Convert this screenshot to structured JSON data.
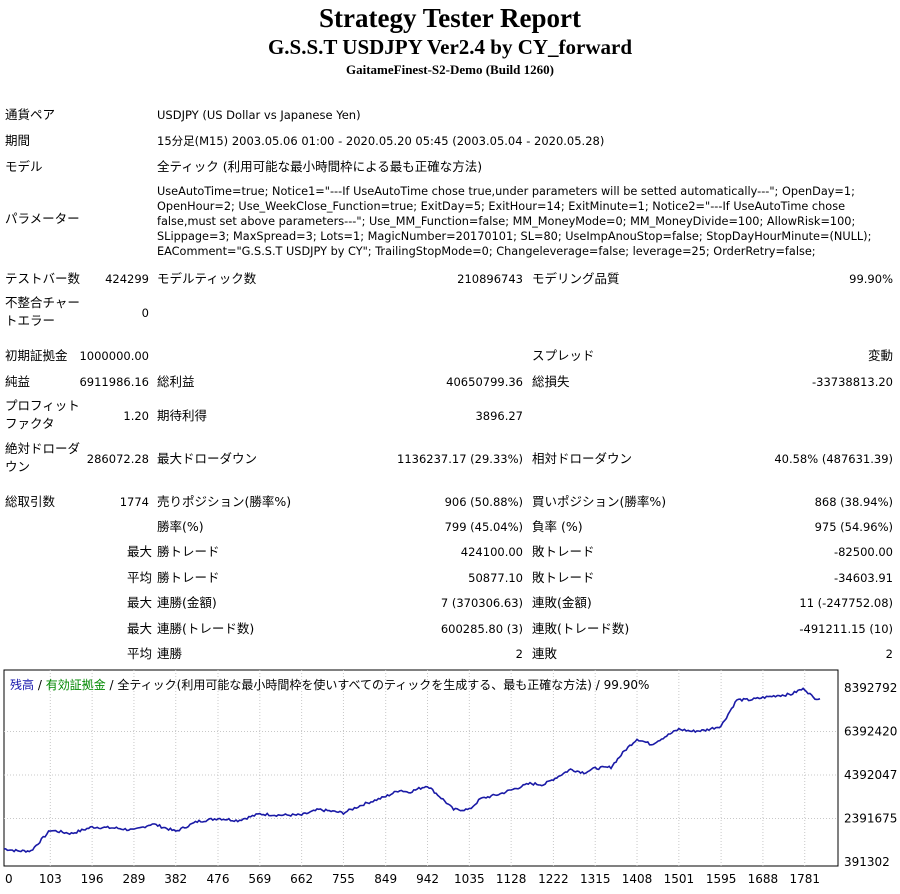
{
  "report": {
    "title": "Strategy Tester Report",
    "subtitle": "G.S.S.T USDJPY Ver2.4 by CY_forward",
    "server": "GaitameFinest-S2-Demo (Build 1260)"
  },
  "info": {
    "symbol_label": "通貨ペア",
    "symbol_value": "USDJPY (US Dollar vs Japanese Yen)",
    "period_label": "期間",
    "period_value": "15分足(M15) 2003.05.06 01:00 - 2020.05.20 05:45 (2003.05.04 - 2020.05.28)",
    "model_label": "モデル",
    "model_value": "全ティック (利用可能な最小時間枠による最も正確な方法)",
    "params_label": "パラメーター",
    "params_value": "UseAutoTime=true; Notice1=\"---If UseAutoTime chose true,under parameters will be setted automatically---\"; OpenDay=1; OpenHour=2; Use_WeekClose_Function=true; ExitDay=5; ExitHour=14; ExitMinute=1; Notice2=\"---If UseAutoTime chose false,must set above parameters---\"; Use_MM_Function=false; MM_MoneyMode=0; MM_MoneyDivide=100; AllowRisk=100; SLippage=3; MaxSpread=3; Lots=1; MagicNumber=20170101; SL=80; UseImpAnouStop=false; StopDayHourMinute=(NULL); EAComment=\"G.S.S.T USDJPY by CY\"; TrailingStopMode=0; Changeleverage=false; leverage=25; OrderRetry=false;"
  },
  "stats": {
    "bars_label": "テストバー数",
    "bars_value": "424299",
    "ticks_label": "モデルティック数",
    "ticks_value": "210896743",
    "quality_label": "モデリング品質",
    "quality_value": "99.90%",
    "mismatch_label_1": "不整合チャー",
    "mismatch_label_2": "トエラー",
    "mismatch_value": "0",
    "deposit_label": "初期証拠金",
    "deposit_value": "1000000.00",
    "spread_label": "スプレッド",
    "spread_value": "変動",
    "net_label": "純益",
    "net_value": "6911986.16",
    "gross_profit_label": "総利益",
    "gross_profit_value": "40650799.36",
    "gross_loss_label": "総損失",
    "gross_loss_value": "-33738813.20",
    "pf_label_1": "プロフィット",
    "pf_label_2": "ファクタ",
    "pf_value": "1.20",
    "expected_label": "期待利得",
    "expected_value": "3896.27",
    "abs_dd_label_1": "絶対ドローダ",
    "abs_dd_label_2": "ウン",
    "abs_dd_value": "286072.28",
    "max_dd_label": "最大ドローダウン",
    "max_dd_value": "1136237.17 (29.33%)",
    "rel_dd_label": "相対ドローダウン",
    "rel_dd_value": "40.58% (487631.39)",
    "trades_label": "総取引数",
    "trades_value": "1774",
    "short_label": "売りポジション(勝率%)",
    "short_value": "906 (50.88%)",
    "long_label": "買いポジション(勝率%)",
    "long_value": "868 (38.94%)",
    "winrate_label": "勝率(%)",
    "winrate_value": "799 (45.04%)",
    "lossrate_label": "負率 (%)",
    "lossrate_value": "975 (54.96%)",
    "max_word": "最大",
    "avg_word": "平均",
    "largest_win_label": "勝トレード",
    "largest_win_value": "424100.00",
    "largest_loss_label": "敗トレード",
    "largest_loss_value": "-82500.00",
    "avg_win_label": "勝トレード",
    "avg_win_value": "50877.10",
    "avg_loss_label": "敗トレード",
    "avg_loss_value": "-34603.91",
    "max_consec_wins_amt_label": "連勝(金額)",
    "max_consec_wins_amt_value": "7 (370306.63)",
    "max_consec_losses_amt_label": "連敗(金額)",
    "max_consec_losses_amt_value": "11 (-247752.08)",
    "max_consec_profit_label": "連勝(トレード数)",
    "max_consec_profit_value": "600285.80 (3)",
    "max_consec_loss_label": "連敗(トレード数)",
    "max_consec_loss_value": "-491211.15 (10)",
    "avg_consec_wins_label": "連勝",
    "avg_consec_wins_value": "2",
    "avg_consec_losses_label": "連敗",
    "avg_consec_losses_value": "2"
  },
  "legend": {
    "balance": "残高",
    "sep1": " / ",
    "equity": "有効証拠金",
    "sep2": " / ",
    "rest": "全ティック(利用可能な最小時間枠を使いすべてのティックを生成する、最も正確な方法) / 99.90%"
  },
  "colors": {
    "balance_line": "#1a1aa6",
    "equity_text": "#008800",
    "grid": "#c8c8c8"
  },
  "chart_data": {
    "type": "line",
    "series": [
      {
        "name": "残高",
        "x": [
          0,
          30,
          60,
          103,
          150,
          196,
          250,
          289,
          330,
          382,
          430,
          476,
          520,
          569,
          610,
          662,
          700,
          755,
          800,
          849,
          880,
          900,
          942,
          980,
          1000,
          1035,
          1060,
          1100,
          1128,
          1170,
          1200,
          1222,
          1260,
          1290,
          1315,
          1350,
          1380,
          1408,
          1440,
          1470,
          1501,
          1530,
          1560,
          1595,
          1630,
          1660,
          1688,
          1720,
          1750,
          1770,
          1781,
          1800,
          1815
        ],
        "values": [
          1000000,
          900000,
          900000,
          1850000,
          1700000,
          2000000,
          1950000,
          1850000,
          2150000,
          1800000,
          2250000,
          2400000,
          2300000,
          2600000,
          2550000,
          2550000,
          2800000,
          2650000,
          3050000,
          3400000,
          3700000,
          3600000,
          3900000,
          3200000,
          2800000,
          2800000,
          3300000,
          3500000,
          3700000,
          4000000,
          3950000,
          4200000,
          4650000,
          4500000,
          4700000,
          4750000,
          5500000,
          6050000,
          5800000,
          6150000,
          6500000,
          6400000,
          6450000,
          6650000,
          7850000,
          7850000,
          7950000,
          8050000,
          8100000,
          8300000,
          8350000,
          7950000,
          7900000
        ]
      }
    ],
    "ylim": [
      391302,
      8392792
    ],
    "y_ticks": [
      "8392792",
      "6392420",
      "4392047",
      "2391675",
      "391302"
    ],
    "y_tick_values": [
      8392792,
      6392420,
      4392047,
      2391675,
      391302
    ],
    "xlim": [
      0,
      1855
    ],
    "x_ticks": [
      "0",
      "103",
      "196",
      "289",
      "382",
      "476",
      "569",
      "662",
      "755",
      "849",
      "942",
      "1035",
      "1128",
      "1222",
      "1315",
      "1408",
      "1501",
      "1595",
      "1688",
      "1781"
    ],
    "grid": true
  }
}
